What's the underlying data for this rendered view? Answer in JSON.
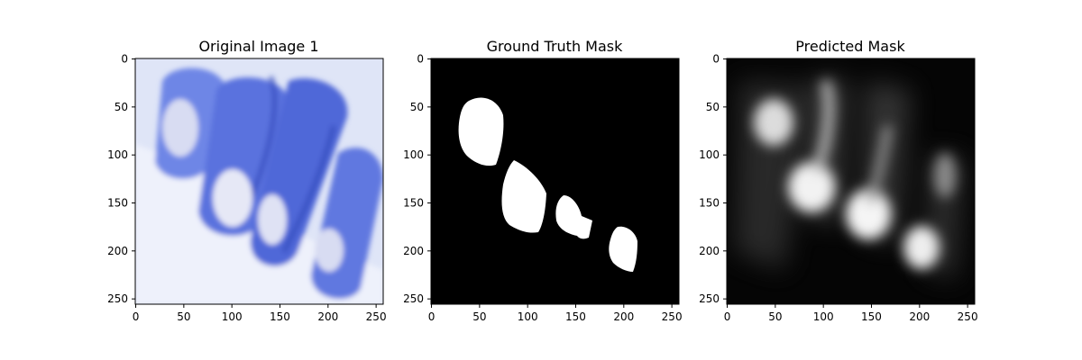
{
  "chart_data": [
    {
      "type": "image",
      "title": "Original Image 1",
      "xlim": [
        0,
        255
      ],
      "ylim": [
        255,
        0
      ],
      "xticks": [
        0,
        50,
        100,
        150,
        200,
        250
      ],
      "yticks": [
        0,
        50,
        100,
        150,
        200,
        250
      ],
      "content": "photo-hand-nails"
    },
    {
      "type": "image",
      "title": "Ground Truth Mask",
      "xlim": [
        0,
        255
      ],
      "ylim": [
        255,
        0
      ],
      "xticks": [
        0,
        50,
        100,
        150,
        200,
        250
      ],
      "yticks": [
        0,
        50,
        100,
        150,
        200,
        250
      ],
      "content": "binary-mask"
    },
    {
      "type": "image",
      "title": "Predicted Mask",
      "xlim": [
        0,
        255
      ],
      "ylim": [
        255,
        0
      ],
      "xticks": [
        0,
        50,
        100,
        150,
        200,
        250
      ],
      "yticks": [
        0,
        50,
        100,
        150,
        200,
        250
      ],
      "content": "soft-mask"
    }
  ],
  "colors": {
    "photo_light": "#e3e8f8",
    "photo_blue": "#5a72de",
    "photo_dark": "#2f44b8",
    "nail": "#d8dcf2",
    "mask_bg": "#000000",
    "mask_fg": "#ffffff"
  }
}
